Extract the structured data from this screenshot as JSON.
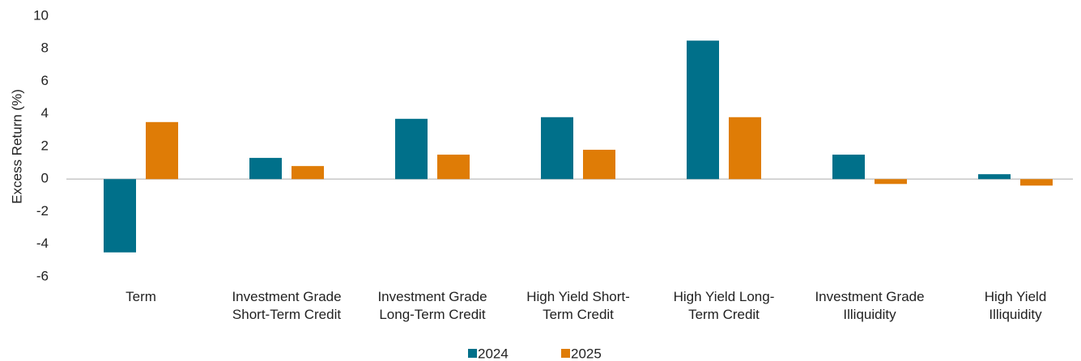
{
  "chart_data": {
    "type": "bar",
    "y_label": "Excess Return (%)",
    "categories": [
      "Term",
      "Investment Grade\nShort-Term Credit",
      "Investment Grade\nLong-Term Credit",
      "High Yield Short-\nTerm Credit",
      "High Yield Long-\nTerm Credit",
      "Investment Grade\nIlliquidity",
      "High Yield\nIlliquidity"
    ],
    "series": [
      {
        "name": "2024",
        "color": "#00708a",
        "values": [
          -4.5,
          1.3,
          3.7,
          3.8,
          8.5,
          1.5,
          0.3
        ]
      },
      {
        "name": "2025",
        "color": "#df7c06",
        "values": [
          3.5,
          0.8,
          1.5,
          1.8,
          3.8,
          -0.3,
          -0.4
        ]
      }
    ],
    "ylim": [
      -6,
      10
    ],
    "yticks": [
      -6,
      -4,
      -2,
      0,
      2,
      4,
      6,
      8,
      10
    ],
    "grid": false,
    "legend": "bottom"
  }
}
